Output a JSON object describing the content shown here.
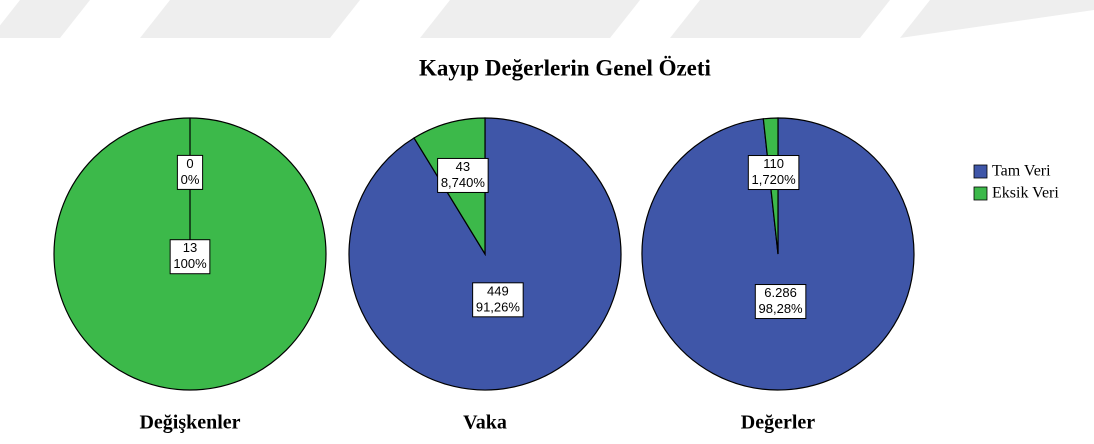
{
  "title": "Kayıp Değerlerin Genel Özeti",
  "chart_data": [
    {
      "type": "pie",
      "label": "Değişkenler",
      "categories": [
        "Tam Veri",
        "Eksik Veri"
      ],
      "colors": [
        "#3f56a8",
        "#3cb94a"
      ],
      "values": [
        0,
        13
      ],
      "value_labels": [
        "0",
        "13"
      ],
      "percents": [
        0,
        100
      ],
      "percent_labels": [
        "0%",
        "100%"
      ]
    },
    {
      "type": "pie",
      "label": "Vaka",
      "categories": [
        "Tam Veri",
        "Eksik Veri"
      ],
      "colors": [
        "#3f56a8",
        "#3cb94a"
      ],
      "values": [
        449,
        43
      ],
      "value_labels": [
        "449",
        "43"
      ],
      "percents": [
        91.26,
        8.74
      ],
      "percent_labels": [
        "91,26%",
        "8,740%"
      ]
    },
    {
      "type": "pie",
      "label": "Değerler",
      "categories": [
        "Tam Veri",
        "Eksik Veri"
      ],
      "colors": [
        "#3f56a8",
        "#3cb94a"
      ],
      "values": [
        6286,
        110
      ],
      "value_labels": [
        "6.286",
        "110"
      ],
      "percents": [
        98.28,
        1.72
      ],
      "percent_labels": [
        "98,28%",
        "1,720%"
      ]
    }
  ]
}
